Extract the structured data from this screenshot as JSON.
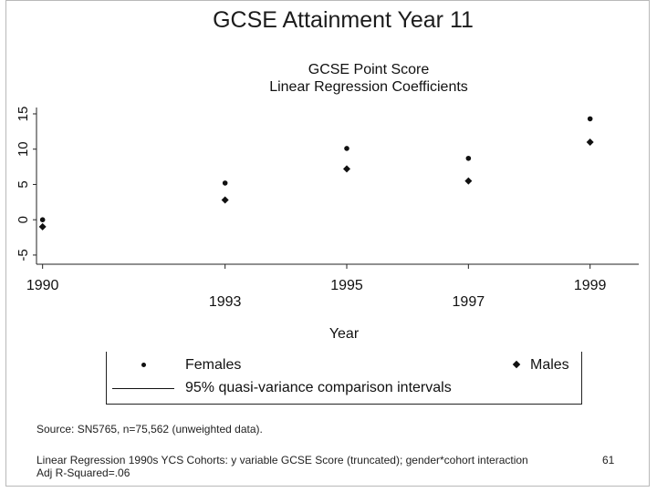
{
  "slide": {
    "title": "GCSE Attainment Year 11",
    "number": "61"
  },
  "chart_data": {
    "type": "scatter",
    "title": "GCSE Point Score",
    "subtitle": "Linear Regression Coefficients",
    "xlabel": "Year",
    "ylabel": "",
    "x": [
      1990,
      1993,
      1995,
      1997,
      1999
    ],
    "x_tick_labels": [
      "1990",
      "1993",
      "1995",
      "1997",
      "1999"
    ],
    "y_ticks": [
      -5,
      0,
      5,
      10,
      15
    ],
    "y_tick_labels": [
      "-5",
      "0",
      "5",
      "10",
      "15"
    ],
    "xlim": [
      1989.9,
      1999.8
    ],
    "ylim": [
      -6.3,
      15.9
    ],
    "grid": false,
    "series": [
      {
        "name": "Females",
        "marker": "small-dot",
        "color": "#111111",
        "values": [
          0.0,
          5.2,
          10.1,
          8.7,
          14.3
        ]
      },
      {
        "name": "Males",
        "marker": "diamond",
        "color": "#111111",
        "values": [
          -1.0,
          2.8,
          7.2,
          5.5,
          11.0
        ]
      }
    ],
    "legend": {
      "placement": "bottom",
      "entries": [
        "Females",
        "Males",
        "95% quasi-variance comparison intervals"
      ]
    }
  },
  "notes": {
    "source": "Source: SN5765, n=75,562 (unweighted data).",
    "regression_line1": "Linear Regression 1990s YCS Cohorts: y variable GCSE Score (truncated); gender*cohort interaction",
    "regression_line2": "Adj R-Squared=.06"
  }
}
